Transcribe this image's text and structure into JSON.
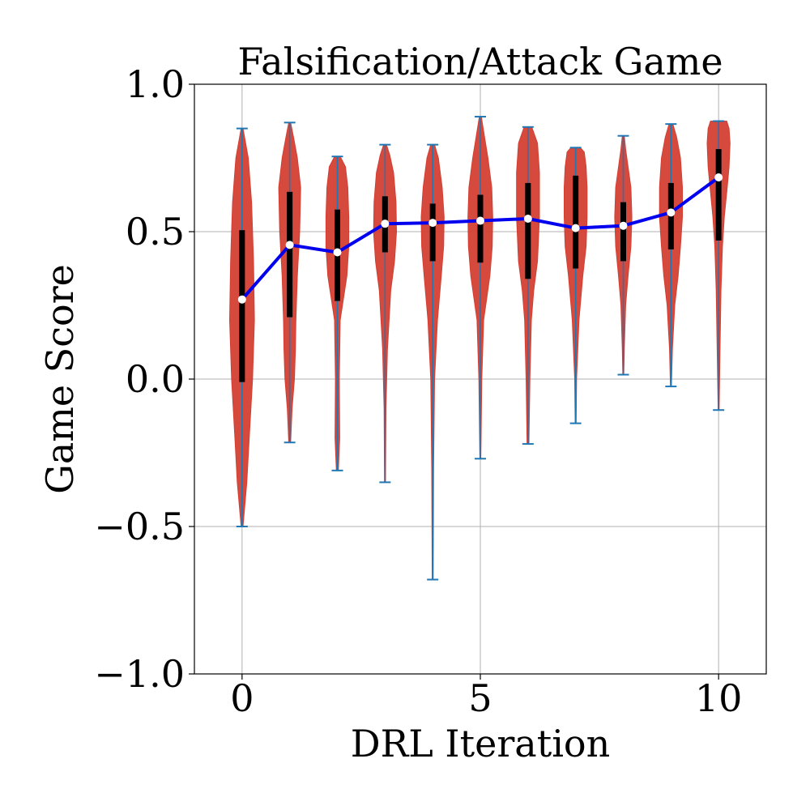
{
  "chart_data": {
    "type": "violin",
    "title": "Falsification/Attack Game",
    "xlabel": "DRL Iteration",
    "ylabel": "Game Score",
    "xlim": [
      -1,
      11
    ],
    "ylim": [
      -1.0,
      1.0
    ],
    "xticks": [
      0,
      5,
      10
    ],
    "xtick_labels": [
      "0",
      "5",
      "10"
    ],
    "yticks": [
      -1.0,
      -0.5,
      0.0,
      0.5,
      1.0
    ],
    "ytick_labels": [
      "−1.0",
      "−0.5",
      "0.0",
      "0.5",
      "1.0"
    ],
    "grid": true,
    "colors": {
      "violin": "#d43f33",
      "whisker": "#1f77b4",
      "box": "#000000",
      "median_line": "#0000ee",
      "median_marker": "#ffffff"
    },
    "iterations": [
      0,
      1,
      2,
      3,
      4,
      5,
      6,
      7,
      8,
      9,
      10
    ],
    "median": [
      0.27,
      0.455,
      0.43,
      0.527,
      0.53,
      0.537,
      0.544,
      0.512,
      0.52,
      0.565,
      0.684
    ],
    "min": [
      -0.5,
      -0.215,
      -0.31,
      -0.35,
      -0.68,
      -0.27,
      -0.22,
      -0.15,
      0.015,
      -0.025,
      -0.105
    ],
    "max": [
      0.85,
      0.87,
      0.755,
      0.795,
      0.795,
      0.89,
      0.855,
      0.785,
      0.825,
      0.865,
      0.875
    ],
    "q1": [
      -0.01,
      0.21,
      0.265,
      0.43,
      0.4,
      0.395,
      0.34,
      0.375,
      0.4,
      0.44,
      0.47
    ],
    "q3": [
      0.505,
      0.635,
      0.575,
      0.62,
      0.595,
      0.625,
      0.665,
      0.69,
      0.6,
      0.665,
      0.78
    ],
    "violins": [
      {
        "y": [
          -0.5,
          -0.35,
          -0.2,
          0.0,
          0.2,
          0.4,
          0.6,
          0.75,
          0.85
        ],
        "w": [
          0.02,
          0.1,
          0.15,
          0.22,
          0.26,
          0.24,
          0.2,
          0.13,
          0.02
        ]
      },
      {
        "y": [
          -0.215,
          -0.1,
          0.0,
          0.1,
          0.2,
          0.35,
          0.5,
          0.65,
          0.75,
          0.82,
          0.87
        ],
        "w": [
          0.02,
          0.05,
          0.1,
          0.12,
          0.13,
          0.16,
          0.21,
          0.23,
          0.16,
          0.08,
          0.02
        ]
      },
      {
        "y": [
          -0.31,
          -0.2,
          0.0,
          0.2,
          0.35,
          0.45,
          0.55,
          0.65,
          0.72,
          0.755
        ],
        "w": [
          0.02,
          0.05,
          0.04,
          0.06,
          0.2,
          0.24,
          0.24,
          0.22,
          0.17,
          0.06
        ]
      },
      {
        "y": [
          -0.35,
          -0.1,
          0.1,
          0.3,
          0.4,
          0.5,
          0.6,
          0.7,
          0.76,
          0.795
        ],
        "w": [
          0.01,
          0.02,
          0.05,
          0.12,
          0.2,
          0.24,
          0.23,
          0.18,
          0.1,
          0.03
        ]
      },
      {
        "y": [
          -0.68,
          -0.3,
          0.0,
          0.2,
          0.35,
          0.45,
          0.55,
          0.65,
          0.75,
          0.795
        ],
        "w": [
          0.01,
          0.02,
          0.04,
          0.1,
          0.18,
          0.23,
          0.24,
          0.2,
          0.12,
          0.04
        ]
      },
      {
        "y": [
          -0.27,
          0.0,
          0.2,
          0.35,
          0.45,
          0.55,
          0.65,
          0.75,
          0.83,
          0.89
        ],
        "w": [
          0.01,
          0.03,
          0.07,
          0.2,
          0.25,
          0.26,
          0.24,
          0.16,
          0.08,
          0.02
        ]
      },
      {
        "y": [
          -0.22,
          0.0,
          0.2,
          0.3,
          0.4,
          0.55,
          0.7,
          0.8,
          0.855
        ],
        "w": [
          0.02,
          0.04,
          0.07,
          0.12,
          0.2,
          0.24,
          0.24,
          0.2,
          0.08
        ]
      },
      {
        "y": [
          -0.15,
          0.0,
          0.2,
          0.35,
          0.45,
          0.55,
          0.65,
          0.72,
          0.77,
          0.785
        ],
        "w": [
          0.01,
          0.02,
          0.07,
          0.15,
          0.22,
          0.24,
          0.24,
          0.22,
          0.18,
          0.1
        ]
      },
      {
        "y": [
          0.015,
          0.1,
          0.25,
          0.35,
          0.45,
          0.55,
          0.65,
          0.72,
          0.78,
          0.825
        ],
        "w": [
          0.01,
          0.02,
          0.05,
          0.1,
          0.16,
          0.18,
          0.16,
          0.1,
          0.05,
          0.02
        ]
      },
      {
        "y": [
          -0.025,
          0.1,
          0.25,
          0.35,
          0.45,
          0.55,
          0.65,
          0.75,
          0.82,
          0.865
        ],
        "w": [
          0.01,
          0.03,
          0.08,
          0.15,
          0.2,
          0.24,
          0.24,
          0.2,
          0.12,
          0.04
        ]
      },
      {
        "y": [
          -0.105,
          0.1,
          0.3,
          0.45,
          0.55,
          0.65,
          0.72,
          0.8,
          0.85,
          0.875
        ],
        "w": [
          0.01,
          0.03,
          0.05,
          0.08,
          0.12,
          0.18,
          0.22,
          0.24,
          0.22,
          0.17
        ]
      }
    ]
  }
}
